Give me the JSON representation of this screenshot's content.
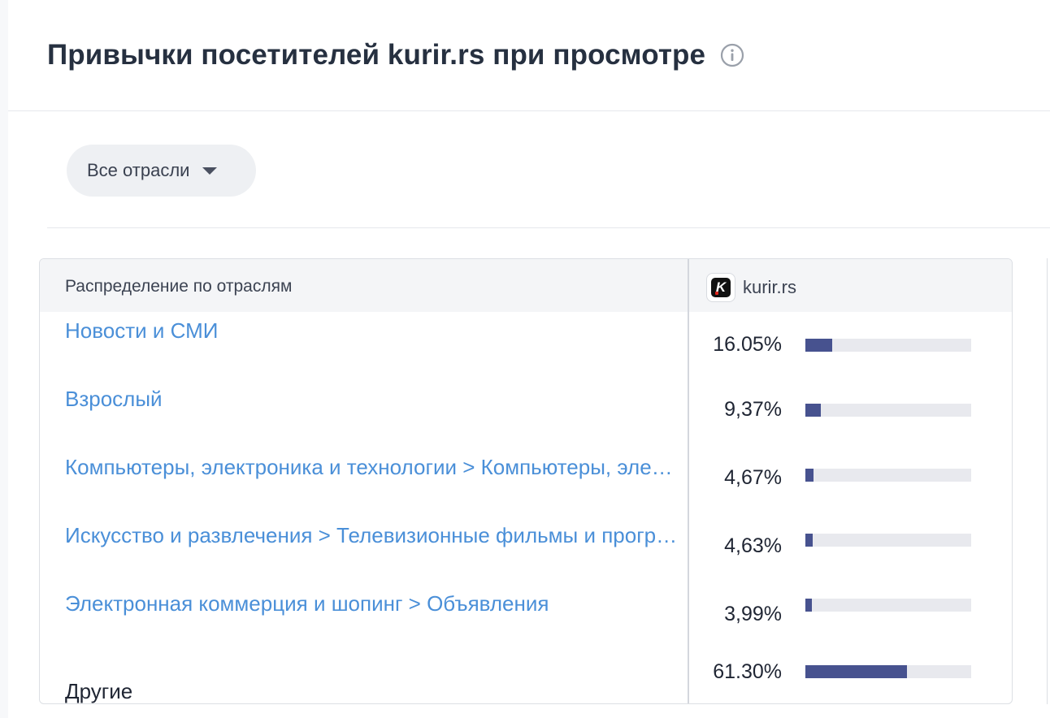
{
  "header": {
    "title": "Привычки посетителей kurir.rs при просмотре",
    "info_icon": "info-circle-icon"
  },
  "filter": {
    "dropdown_label": "Все отрасли"
  },
  "table": {
    "col_left": "Распределение по отраслям",
    "col_right_site": "kurir.rs",
    "bar_color": "#47528f",
    "rows": [
      {
        "label": "Новости и СМИ",
        "percent": "16.05%",
        "value": 16.05,
        "link": true
      },
      {
        "label": "Взрослый",
        "percent": "9,37%",
        "value": 9.37,
        "link": true
      },
      {
        "label": "Компьютеры, электроника и технологии > Компьютеры, электроника и технологии",
        "percent": "4,67%",
        "value": 4.67,
        "link": true
      },
      {
        "label": "Искусство и развлечения > Телевизионные фильмы и программы",
        "percent": "4,63%",
        "value": 4.63,
        "link": true
      },
      {
        "label": "Электронная коммерция и шопинг > Объявления",
        "percent": "3,99%",
        "value": 3.99,
        "link": true
      },
      {
        "label": "Другие",
        "percent": "61.30%",
        "value": 61.3,
        "link": false
      }
    ]
  }
}
